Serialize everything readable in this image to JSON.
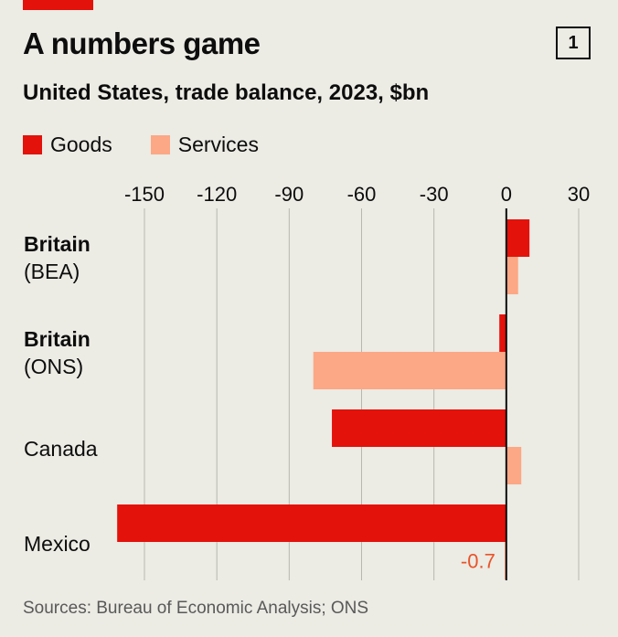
{
  "colors": {
    "goods": "#e3120b",
    "services": "#fca785",
    "accent": "#e3120b",
    "annotation": "#e8542a",
    "gridline": "#b7b7b0",
    "background": "#ecebe4"
  },
  "header": {
    "title": "A numbers game",
    "chart_number": "1",
    "subtitle": "United States, trade balance, 2023, $bn"
  },
  "legend": {
    "goods_label": "Goods",
    "services_label": "Services"
  },
  "footer": {
    "source": "Sources: Bureau of Economic Analysis; ONS"
  },
  "chart_data": {
    "type": "bar",
    "orientation": "horizontal",
    "title": "A numbers game",
    "subtitle": "United States, trade balance, 2023, $bn",
    "categories": [
      {
        "name": "Britain",
        "detail": "(BEA)"
      },
      {
        "name": "Britain",
        "detail": "(ONS)"
      },
      {
        "name": "Canada",
        "detail": ""
      },
      {
        "name": "Mexico",
        "detail": ""
      }
    ],
    "series": [
      {
        "name": "Goods",
        "values": [
          9.6,
          -2.9,
          -72.3,
          -161.3
        ]
      },
      {
        "name": "Services",
        "values": [
          4.9,
          -80.0,
          6.2,
          -0.7
        ]
      }
    ],
    "xticks": [
      -150,
      -120,
      -90,
      -60,
      -30,
      0,
      30
    ],
    "xlim": [
      -165,
      35
    ],
    "grid": true,
    "legend_position": "top-left",
    "annotations": [
      {
        "text": "-0.7",
        "category": "Mexico",
        "series": "Services",
        "value": -0.7
      }
    ],
    "source": "Sources: Bureau of Economic Analysis; ONS"
  }
}
